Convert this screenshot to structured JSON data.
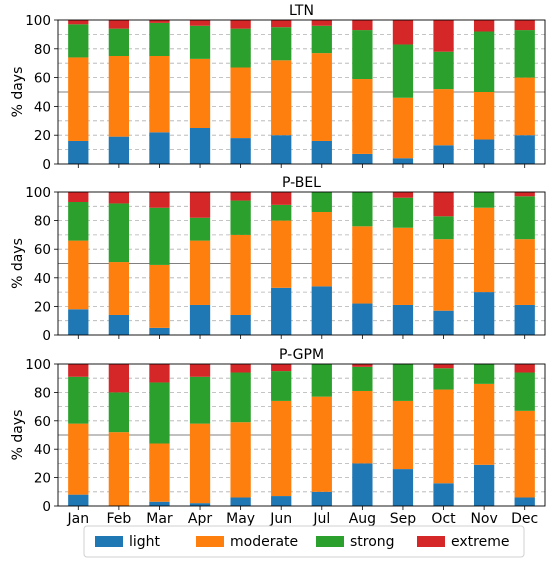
{
  "colors": {
    "light": "#1f77b4",
    "moderate": "#ff7f0e",
    "strong": "#2ca02c",
    "extreme": "#d62728"
  },
  "months": [
    "Jan",
    "Feb",
    "Mar",
    "Apr",
    "May",
    "Jun",
    "Jul",
    "Aug",
    "Sep",
    "Oct",
    "Nov",
    "Dec"
  ],
  "legend": [
    {
      "key": "light",
      "label": "light"
    },
    {
      "key": "moderate",
      "label": "moderate"
    },
    {
      "key": "strong",
      "label": "strong"
    },
    {
      "key": "extreme",
      "label": "extreme"
    }
  ],
  "chart_data": [
    {
      "type": "bar",
      "stacked": true,
      "title": "LTN",
      "ylabel": "% days",
      "ylim": [
        0,
        100
      ],
      "yticks": [
        0,
        20,
        40,
        60,
        80,
        100
      ],
      "grid": true,
      "categories": [
        "Jan",
        "Feb",
        "Mar",
        "Apr",
        "May",
        "Jun",
        "Jul",
        "Aug",
        "Sep",
        "Oct",
        "Nov",
        "Dec"
      ],
      "series": [
        {
          "name": "light",
          "values": [
            16,
            19,
            22,
            25,
            18,
            20,
            16,
            7,
            4,
            13,
            17,
            20
          ]
        },
        {
          "name": "moderate",
          "values": [
            58,
            56,
            53,
            48,
            49,
            52,
            61,
            52,
            42,
            39,
            33,
            40
          ]
        },
        {
          "name": "strong",
          "values": [
            23,
            19,
            23,
            23,
            27,
            23,
            19,
            34,
            37,
            26,
            42,
            33
          ]
        },
        {
          "name": "extreme",
          "values": [
            3,
            6,
            2,
            4,
            6,
            5,
            4,
            7,
            17,
            22,
            8,
            7
          ]
        }
      ]
    },
    {
      "type": "bar",
      "stacked": true,
      "title": "P-BEL",
      "ylabel": "% days",
      "ylim": [
        0,
        100
      ],
      "yticks": [
        0,
        20,
        40,
        60,
        80,
        100
      ],
      "grid": true,
      "categories": [
        "Jan",
        "Feb",
        "Mar",
        "Apr",
        "May",
        "Jun",
        "Jul",
        "Aug",
        "Sep",
        "Oct",
        "Nov",
        "Dec"
      ],
      "series": [
        {
          "name": "light",
          "values": [
            18,
            14,
            5,
            21,
            14,
            33,
            34,
            22,
            21,
            17,
            30,
            21
          ]
        },
        {
          "name": "moderate",
          "values": [
            48,
            37,
            44,
            45,
            56,
            47,
            52,
            54,
            54,
            50,
            59,
            46
          ]
        },
        {
          "name": "strong",
          "values": [
            27,
            41,
            40,
            16,
            24,
            11,
            14,
            24,
            21,
            16,
            11,
            30
          ]
        },
        {
          "name": "extreme",
          "values": [
            7,
            8,
            11,
            18,
            6,
            9,
            0,
            0,
            4,
            17,
            0,
            3
          ]
        }
      ]
    },
    {
      "type": "bar",
      "stacked": true,
      "title": "P-GPM",
      "ylabel": "% days",
      "ylim": [
        0,
        100
      ],
      "yticks": [
        0,
        20,
        40,
        60,
        80,
        100
      ],
      "grid": true,
      "categories": [
        "Jan",
        "Feb",
        "Mar",
        "Apr",
        "May",
        "Jun",
        "Jul",
        "Aug",
        "Sep",
        "Oct",
        "Nov",
        "Dec"
      ],
      "series": [
        {
          "name": "light",
          "values": [
            8,
            0,
            3,
            2,
            6,
            7,
            10,
            30,
            26,
            16,
            29,
            6
          ]
        },
        {
          "name": "moderate",
          "values": [
            50,
            52,
            41,
            56,
            53,
            67,
            67,
            51,
            48,
            66,
            57,
            61
          ]
        },
        {
          "name": "strong",
          "values": [
            33,
            28,
            43,
            33,
            35,
            21,
            23,
            17,
            26,
            15,
            14,
            27
          ]
        },
        {
          "name": "extreme",
          "values": [
            9,
            20,
            13,
            9,
            6,
            5,
            0,
            2,
            0,
            3,
            0,
            6
          ]
        }
      ]
    }
  ]
}
